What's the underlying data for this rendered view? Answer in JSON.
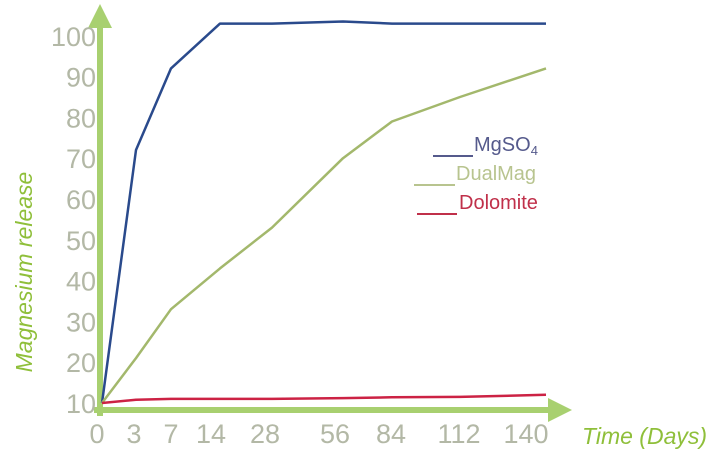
{
  "chart_data": {
    "type": "line",
    "title": "",
    "xlabel": "Time (Days)",
    "ylabel": "Magnesium release",
    "x_ticks": [
      "0",
      "3",
      "7",
      "14",
      "28",
      "56",
      "84",
      "112",
      "140"
    ],
    "y_ticks": [
      10,
      20,
      30,
      40,
      50,
      60,
      70,
      80,
      90,
      100
    ],
    "ylim": [
      10,
      100
    ],
    "grid": false,
    "legend_position": "right",
    "series": [
      {
        "name": "MgSO4",
        "name_main": "MgSO",
        "name_sub": "4",
        "color": "#2a4a8c",
        "legend_color": "#555a8c",
        "points": [
          [
            0,
            10
          ],
          [
            3,
            72
          ],
          [
            7,
            92
          ],
          [
            14,
            103
          ],
          [
            28,
            103
          ],
          [
            56,
            103.5
          ],
          [
            84,
            103
          ],
          [
            112,
            103
          ],
          [
            140,
            103
          ]
        ]
      },
      {
        "name": "DualMag",
        "color": "#a3b86c",
        "legend_color": "#b8c48f",
        "points": [
          [
            0,
            10
          ],
          [
            3,
            21
          ],
          [
            7,
            33
          ],
          [
            14,
            43
          ],
          [
            28,
            53
          ],
          [
            56,
            70
          ],
          [
            84,
            79
          ],
          [
            112,
            85
          ],
          [
            140,
            92
          ]
        ]
      },
      {
        "name": "Dolomite",
        "color": "#cc2244",
        "legend_color": "#c0304a",
        "points": [
          [
            0,
            10
          ],
          [
            3,
            10.8
          ],
          [
            7,
            11
          ],
          [
            14,
            11
          ],
          [
            28,
            11
          ],
          [
            56,
            11.2
          ],
          [
            84,
            11.4
          ],
          [
            112,
            11.5
          ],
          [
            140,
            12
          ]
        ]
      }
    ],
    "axis_color": "#a8d070"
  }
}
